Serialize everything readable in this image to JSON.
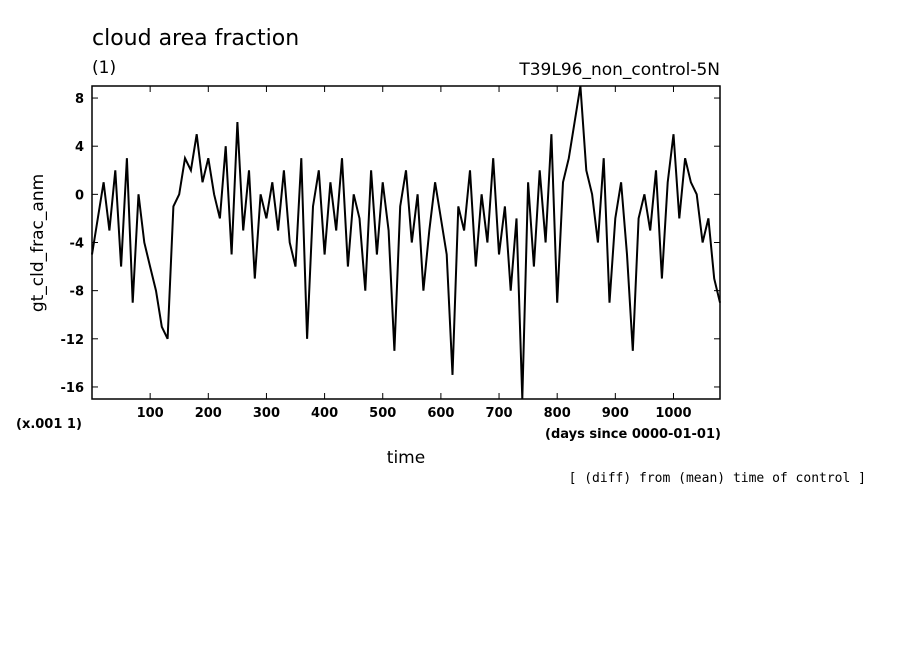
{
  "chart_data": {
    "type": "line",
    "title": "cloud area fraction",
    "unit": "(1)",
    "experiment": "T39L96_non_control-5N",
    "ylabel": "gt_cld_frac_anm",
    "xlabel": "time",
    "x_units": "(days since 0000-01-01)",
    "y_scale_note": "(x.001 1)",
    "footnote": "[ (diff) from (mean) time of control ]",
    "xlim": [
      0,
      1080
    ],
    "ylim": [
      -17,
      9
    ],
    "x_ticks": [
      100,
      200,
      300,
      400,
      500,
      600,
      700,
      800,
      900,
      1000
    ],
    "y_ticks": [
      8,
      4,
      0,
      -4,
      -8,
      -12,
      -16
    ],
    "grid": false,
    "series": [
      {
        "x": [
          0,
          10,
          20,
          30,
          40,
          50,
          60,
          70,
          80,
          90,
          100,
          110,
          120,
          130,
          140,
          150,
          160,
          170,
          180,
          190,
          200,
          210,
          220,
          230,
          240,
          250,
          260,
          270,
          280,
          290,
          300,
          310,
          320,
          330,
          340,
          350,
          360,
          370,
          380,
          390,
          400,
          410,
          420,
          430,
          440,
          450,
          460,
          470,
          480,
          490,
          500,
          510,
          520,
          530,
          540,
          550,
          560,
          570,
          580,
          590,
          600,
          610,
          620,
          630,
          640,
          650,
          660,
          670,
          680,
          690,
          700,
          710,
          720,
          730,
          740,
          750,
          760,
          770,
          780,
          790,
          800,
          810,
          820,
          830,
          840,
          850,
          860,
          870,
          880,
          890,
          900,
          910,
          920,
          930,
          940,
          950,
          960,
          970,
          980,
          990,
          1000,
          1010,
          1020,
          1030,
          1040,
          1050,
          1060,
          1070,
          1080
        ],
        "y": [
          -5,
          -2,
          1,
          -3,
          2,
          -6,
          3,
          -9,
          0,
          -4,
          -6,
          -8,
          -11,
          -12,
          -1,
          0,
          3,
          2,
          5,
          1,
          3,
          0,
          -2,
          4,
          -5,
          6,
          -3,
          2,
          -7,
          0,
          -2,
          1,
          -3,
          2,
          -4,
          -6,
          3,
          -12,
          -1,
          2,
          -5,
          1,
          -3,
          3,
          -6,
          0,
          -2,
          -8,
          2,
          -5,
          1,
          -3,
          -13,
          -1,
          2,
          -4,
          0,
          -8,
          -3,
          1,
          -2,
          -5,
          -15,
          -1,
          -3,
          2,
          -6,
          0,
          -4,
          3,
          -5,
          -1,
          -8,
          -2,
          -17,
          1,
          -6,
          2,
          -4,
          5,
          -9,
          1,
          3,
          6,
          9,
          2,
          0,
          -4,
          3,
          -9,
          -2,
          1,
          -5,
          -13,
          -2,
          0,
          -3,
          2,
          -7,
          1,
          5,
          -2,
          3,
          1,
          0,
          -4,
          -2,
          -7,
          -9
        ]
      }
    ]
  }
}
